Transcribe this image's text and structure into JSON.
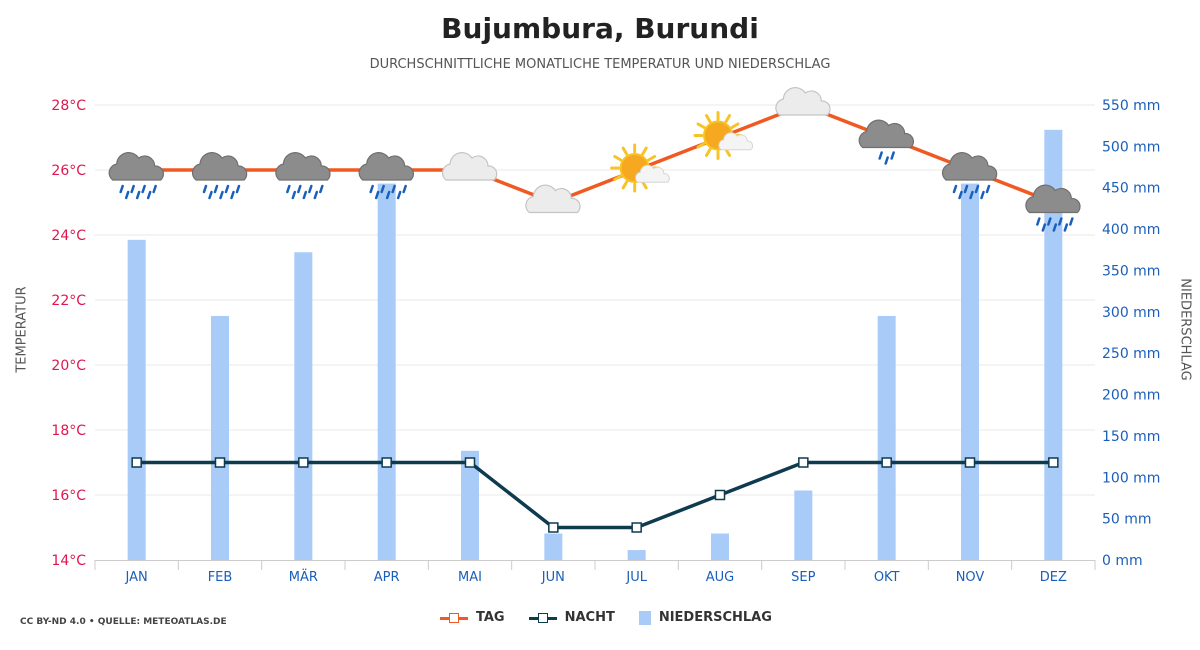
{
  "title": "Bujumbura, Burundi",
  "subtitle": "DURCHSCHNITTLICHE MONATLICHE TEMPERATUR UND NIEDERSCHLAG",
  "credit": "CC BY-ND 4.0 • QUELLE: METEOATLAS.DE",
  "chart_data": {
    "type": "line+bar",
    "categories": [
      "JAN",
      "FEB",
      "MÄR",
      "APR",
      "MAI",
      "JUN",
      "JUL",
      "AUG",
      "SEP",
      "OKT",
      "NOV",
      "DEZ"
    ],
    "ylabel_left": "TEMPERATUR",
    "ylabel_right": "NIEDERSCHLAG",
    "ylim_left": [
      14,
      28
    ],
    "ylim_right": [
      0,
      550
    ],
    "left_ticks": [
      "14°C",
      "16°C",
      "18°C",
      "20°C",
      "22°C",
      "24°C",
      "26°C",
      "28°C"
    ],
    "right_ticks": [
      "0 mm",
      "50 mm",
      "100 mm",
      "150 mm",
      "200 mm",
      "250 mm",
      "300 mm",
      "350 mm",
      "400 mm",
      "450 mm",
      "500 mm",
      "550 mm"
    ],
    "series": [
      {
        "name": "TAG",
        "axis": "left",
        "values": [
          26,
          26,
          26,
          26,
          26,
          25,
          26,
          27,
          28,
          27,
          26,
          25
        ]
      },
      {
        "name": "NACHT",
        "axis": "left",
        "values": [
          17,
          17,
          17,
          17,
          17,
          15,
          15,
          16,
          17,
          17,
          17,
          17
        ]
      },
      {
        "name": "NIEDERSCHLAG",
        "axis": "right",
        "values": [
          387,
          295,
          372,
          455,
          132,
          32,
          12,
          32,
          84,
          295,
          455,
          520
        ]
      }
    ],
    "weather_icons": [
      "heavy-rain-icon",
      "heavy-rain-icon",
      "heavy-rain-icon",
      "heavy-rain-icon",
      "cloud-icon",
      "cloud-icon",
      "partly-sunny-icon",
      "partly-sunny-icon",
      "cloud-icon",
      "light-rain-icon",
      "heavy-rain-icon",
      "heavy-rain-icon"
    ],
    "grid": true,
    "legend_position": "bottom-center",
    "colors": {
      "tag": "#f05a22",
      "nacht": "#0f3b4f",
      "niederschlag": "#a9cbf7",
      "left_axis": "#e0174f",
      "right_axis": "#1a5fbb",
      "month_axis": "#1a5fbb"
    }
  }
}
